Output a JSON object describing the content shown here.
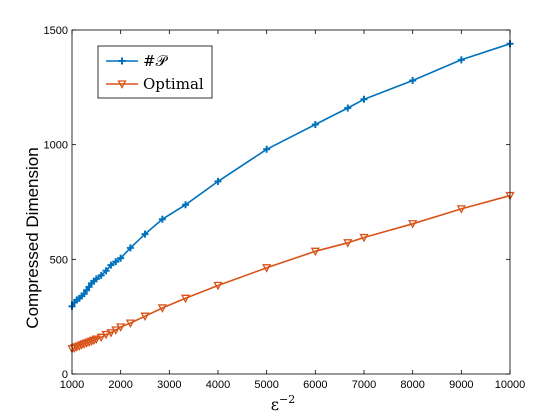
{
  "chart_data": {
    "type": "line",
    "xlabel_base": "ε",
    "xlabel_exp": "−2",
    "ylabel": "Compressed Dimension",
    "xlim": [
      1000,
      10000
    ],
    "ylim": [
      0,
      1500
    ],
    "xticks": [
      1000,
      2000,
      3000,
      4000,
      5000,
      6000,
      7000,
      8000,
      9000,
      10000
    ],
    "yticks": [
      0,
      500,
      1000,
      1500
    ],
    "grid": false,
    "legend_position": "top-left",
    "series": [
      {
        "name": "#𝒫",
        "color": "#0072BD",
        "marker": "plus",
        "x": [
          1000,
          1050,
          1100,
          1150,
          1200,
          1250,
          1300,
          1350,
          1400,
          1450,
          1500,
          1600,
          1700,
          1800,
          1900,
          2000,
          2200,
          2500,
          2857,
          3333,
          4000,
          5000,
          6000,
          6667,
          7000,
          8000,
          9000,
          10000
        ],
        "y": [
          295,
          312,
          323,
          330,
          340,
          350,
          365,
          380,
          395,
          405,
          415,
          430,
          450,
          475,
          490,
          505,
          550,
          610,
          675,
          738,
          840,
          980,
          1088,
          1160,
          1198,
          1280,
          1370,
          1440
        ]
      },
      {
        "name": "Optimal",
        "color": "#D95319",
        "marker": "triangle-down",
        "x": [
          1000,
          1050,
          1100,
          1150,
          1200,
          1250,
          1300,
          1350,
          1400,
          1450,
          1500,
          1600,
          1700,
          1800,
          1900,
          2000,
          2200,
          2500,
          2857,
          3333,
          4000,
          5000,
          6000,
          6667,
          7000,
          8000,
          9000,
          10000
        ],
        "y": [
          110,
          113,
          118,
          122,
          127,
          131,
          135,
          139,
          143,
          147,
          152,
          160,
          172,
          180,
          192,
          205,
          222,
          252,
          288,
          330,
          386,
          463,
          535,
          572,
          595,
          655,
          720,
          778
        ]
      }
    ]
  }
}
